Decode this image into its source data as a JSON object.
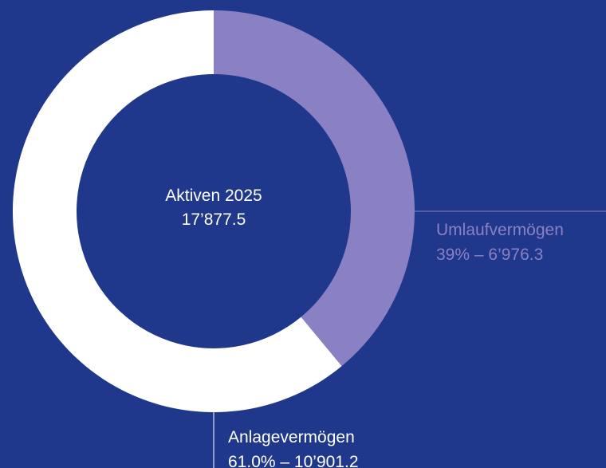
{
  "chart_data": {
    "type": "pie",
    "donut": true,
    "title": "Aktiven 2025",
    "total": 17877.5,
    "total_label": "17’877.5",
    "categories": [
      "Umlaufvermögen",
      "Anlagevermögen"
    ],
    "values": [
      39,
      61.0
    ],
    "value_labels": [
      "39%",
      "61.0%"
    ],
    "amounts": [
      6976.3,
      10901.2
    ],
    "amount_labels": [
      "6’976.3",
      "10’901.2"
    ],
    "separator": "–",
    "colors": [
      "#8a80c4",
      "#ffffff"
    ],
    "label_colors": [
      "#8a80c4",
      "#ffffff"
    ]
  }
}
